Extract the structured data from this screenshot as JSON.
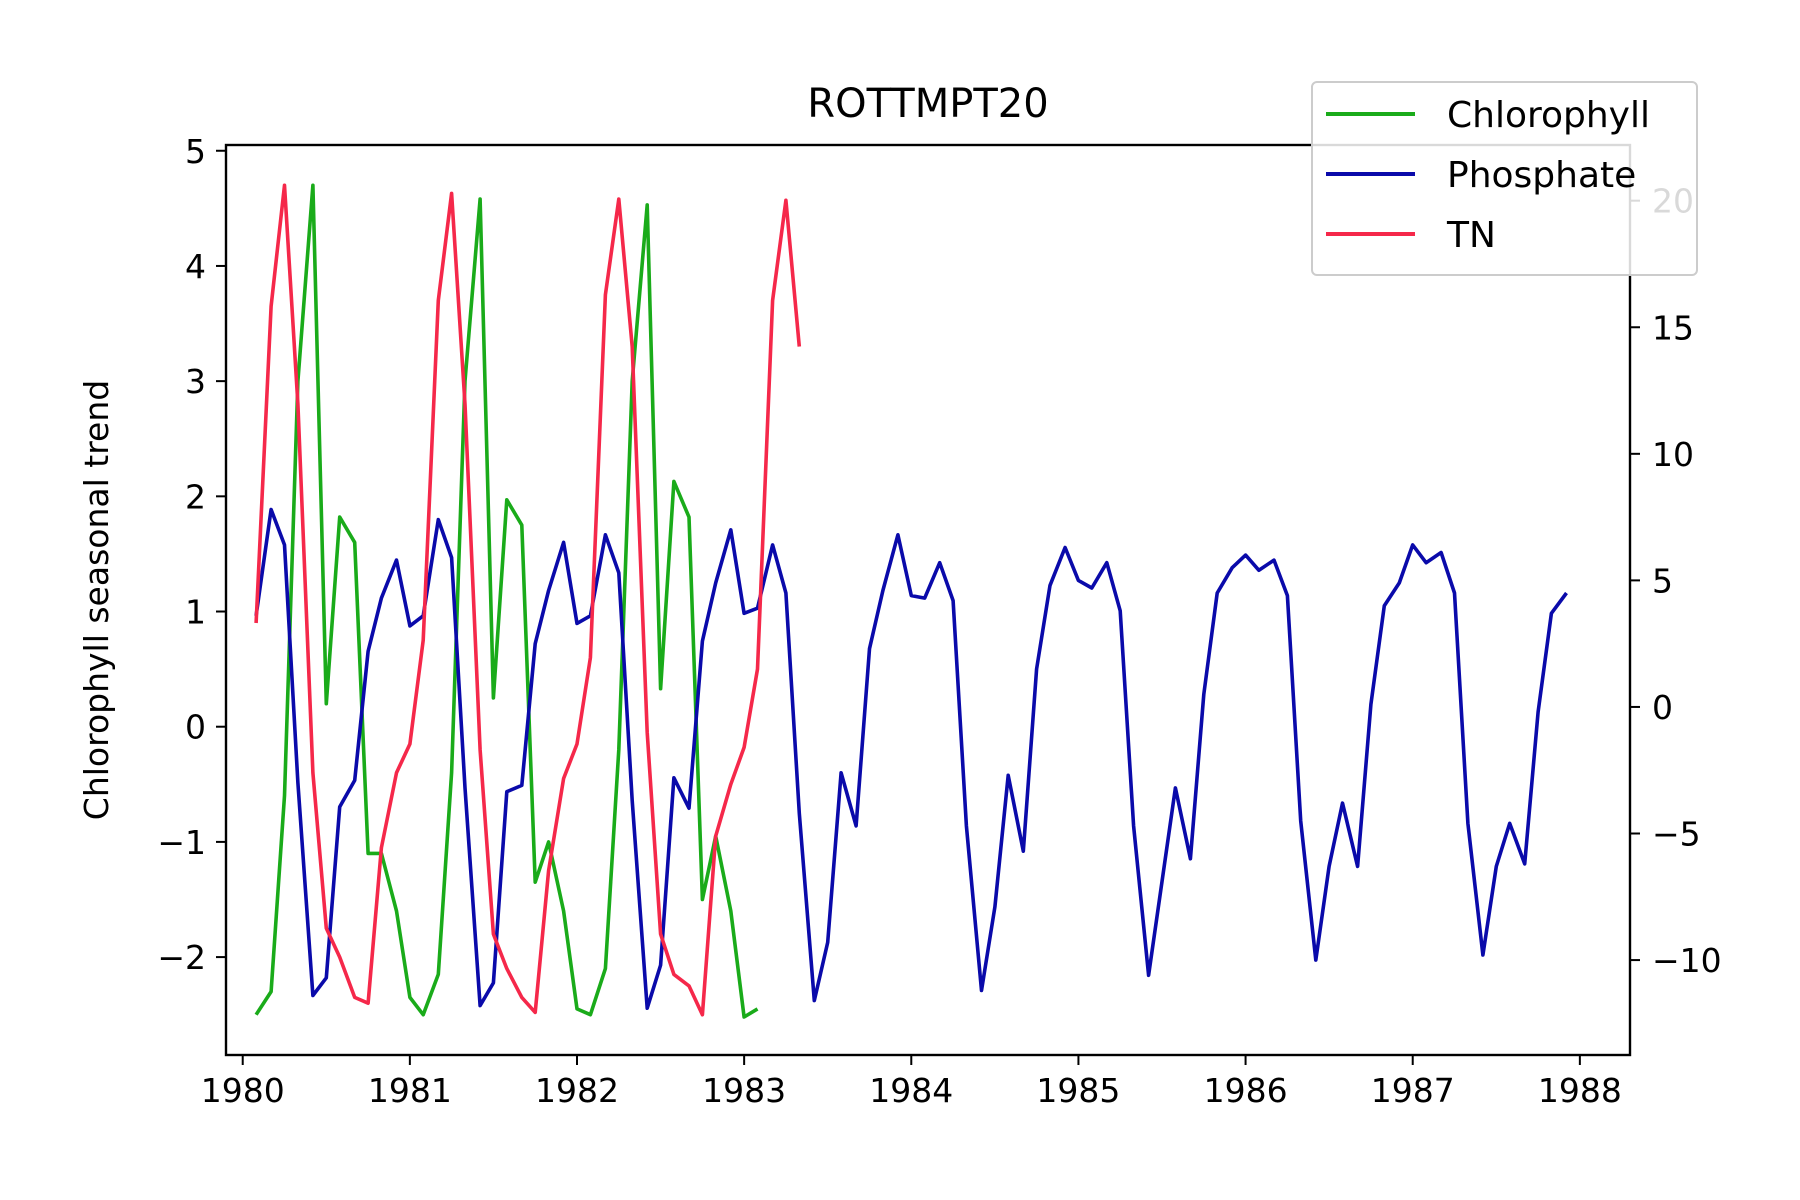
{
  "chart_data": {
    "type": "line",
    "title": "ROTTMPT20",
    "ylabel": "Chlorophyll seasonal trend",
    "xlabel": "",
    "xlim": [
      1979.9,
      1988.3
    ],
    "ylim": [
      -2.85,
      5.05
    ],
    "ylim_right": [
      -13.75,
      22.2
    ],
    "x_ticks": [
      1980,
      1981,
      1982,
      1983,
      1984,
      1985,
      1986,
      1987,
      1988
    ],
    "x_tick_labels": [
      "1980",
      "1981",
      "1982",
      "1983",
      "1984",
      "1985",
      "1986",
      "1987",
      "1988"
    ],
    "y_ticks_left": [
      -2,
      -1,
      0,
      1,
      2,
      3,
      4,
      5
    ],
    "y_tick_labels_left": [
      "−2",
      "−1",
      "0",
      "1",
      "2",
      "3",
      "4",
      "5"
    ],
    "y_ticks_right": [
      -10,
      -5,
      0,
      5,
      10,
      15,
      20
    ],
    "y_tick_labels_right": [
      "−10",
      "−5",
      "0",
      "5",
      "10",
      "15",
      "20"
    ],
    "grid": false,
    "legend_position": "top-right",
    "series": [
      {
        "name": "Chlorophyll",
        "color": "#1aab1a",
        "axis": "left",
        "x": [
          1980.08,
          1980.17,
          1980.25,
          1980.33,
          1980.42,
          1980.5,
          1980.58,
          1980.67,
          1980.75,
          1980.83,
          1980.92,
          1981.0,
          1981.08,
          1981.17,
          1981.25,
          1981.33,
          1981.42,
          1981.5,
          1981.58,
          1981.67,
          1981.75,
          1981.83,
          1981.92,
          1982.0,
          1982.08,
          1982.17,
          1982.25,
          1982.33,
          1982.42,
          1982.5,
          1982.58,
          1982.67,
          1982.75,
          1982.83,
          1982.92,
          1983.0,
          1983.08
        ],
        "y": [
          -2.5,
          -2.3,
          -0.6,
          3.0,
          4.7,
          0.2,
          1.82,
          1.6,
          -1.1,
          -1.1,
          -1.6,
          -2.35,
          -2.5,
          -2.15,
          -0.4,
          3.0,
          4.58,
          0.25,
          1.97,
          1.75,
          -1.35,
          -1.0,
          -1.6,
          -2.45,
          -2.5,
          -2.1,
          -0.2,
          3.0,
          4.53,
          0.33,
          2.13,
          1.82,
          -1.5,
          -0.95,
          -1.6,
          -2.52,
          -2.45
        ]
      },
      {
        "name": "Phosphate",
        "color": "#0a0aaa",
        "axis": "right",
        "x": [
          1980.08,
          1980.17,
          1980.25,
          1980.33,
          1980.42,
          1980.5,
          1980.58,
          1980.67,
          1980.75,
          1980.83,
          1980.92,
          1981.0,
          1981.08,
          1981.17,
          1981.25,
          1981.33,
          1981.42,
          1981.5,
          1981.58,
          1981.67,
          1981.75,
          1981.83,
          1981.92,
          1982.0,
          1982.08,
          1982.17,
          1982.25,
          1982.33,
          1982.42,
          1982.5,
          1982.58,
          1982.67,
          1982.75,
          1982.83,
          1982.92,
          1983.0,
          1983.08,
          1983.17,
          1983.25,
          1983.33,
          1983.42,
          1983.5,
          1983.58,
          1983.67,
          1983.75,
          1983.83,
          1983.92,
          1984.0,
          1984.08,
          1984.17,
          1984.25,
          1984.33,
          1984.42,
          1984.5,
          1984.58,
          1984.67,
          1984.75,
          1984.83,
          1984.92,
          1985.0,
          1985.08,
          1985.17,
          1985.25,
          1985.33,
          1985.42,
          1985.5,
          1985.58,
          1985.67,
          1985.75,
          1985.83,
          1985.92,
          1986.0,
          1986.08,
          1986.17,
          1986.25,
          1986.33,
          1986.42,
          1986.5,
          1986.58,
          1986.67,
          1986.75,
          1986.83,
          1986.92,
          1987.0,
          1987.08,
          1987.17,
          1987.25,
          1987.33,
          1987.42,
          1987.5,
          1987.58,
          1987.67,
          1987.75,
          1987.83,
          1987.92
        ],
        "y": [
          3.6,
          7.8,
          6.4,
          -3.0,
          -11.4,
          -10.7,
          -3.95,
          -2.9,
          2.2,
          4.3,
          5.8,
          3.2,
          3.6,
          7.4,
          5.9,
          -3.2,
          -11.8,
          -10.9,
          -3.35,
          -3.1,
          2.5,
          4.6,
          6.5,
          3.3,
          3.6,
          6.8,
          5.3,
          -3.7,
          -11.9,
          -10.2,
          -2.8,
          -4.0,
          2.6,
          4.9,
          7.0,
          3.7,
          3.9,
          6.4,
          4.5,
          -4.2,
          -11.6,
          -9.3,
          -2.6,
          -4.7,
          2.3,
          4.6,
          6.8,
          4.4,
          4.3,
          5.7,
          4.2,
          -4.7,
          -11.2,
          -7.9,
          -2.7,
          -5.7,
          1.5,
          4.8,
          6.3,
          5.0,
          4.7,
          5.7,
          3.8,
          -4.7,
          -10.6,
          -6.9,
          -3.2,
          -6.0,
          0.5,
          4.5,
          5.5,
          6.0,
          5.4,
          5.8,
          4.4,
          -4.5,
          -10.0,
          -6.3,
          -3.8,
          -6.3,
          0.1,
          4.0,
          4.9,
          6.4,
          5.7,
          6.1,
          4.5,
          -4.6,
          -9.8,
          -6.3,
          -4.6,
          -6.2,
          -0.2,
          3.7,
          4.5
        ]
      },
      {
        "name": "TN",
        "color": "#f5284a",
        "axis": "left",
        "x": [
          1980.08,
          1980.17,
          1980.25,
          1980.33,
          1980.42,
          1980.5,
          1980.58,
          1980.67,
          1980.75,
          1980.83,
          1980.92,
          1981.0,
          1981.08,
          1981.17,
          1981.25,
          1981.33,
          1981.42,
          1981.5,
          1981.58,
          1981.67,
          1981.75,
          1981.83,
          1981.92,
          1982.0,
          1982.08,
          1982.17,
          1982.25,
          1982.33,
          1982.42,
          1982.5,
          1982.58,
          1982.67,
          1982.75,
          1982.83,
          1982.92,
          1983.0,
          1983.08,
          1983.17,
          1983.25,
          1983.33
        ],
        "y": [
          0.9,
          3.65,
          4.7,
          2.8,
          -0.4,
          -1.75,
          -2.0,
          -2.35,
          -2.4,
          -1.05,
          -0.4,
          -0.15,
          0.75,
          3.7,
          4.63,
          2.8,
          -0.2,
          -1.8,
          -2.1,
          -2.35,
          -2.48,
          -1.25,
          -0.45,
          -0.15,
          0.6,
          3.75,
          4.58,
          3.3,
          -0.05,
          -1.8,
          -2.15,
          -2.25,
          -2.5,
          -0.95,
          -0.5,
          -0.18,
          0.5,
          3.7,
          4.57,
          3.3
        ]
      }
    ]
  }
}
